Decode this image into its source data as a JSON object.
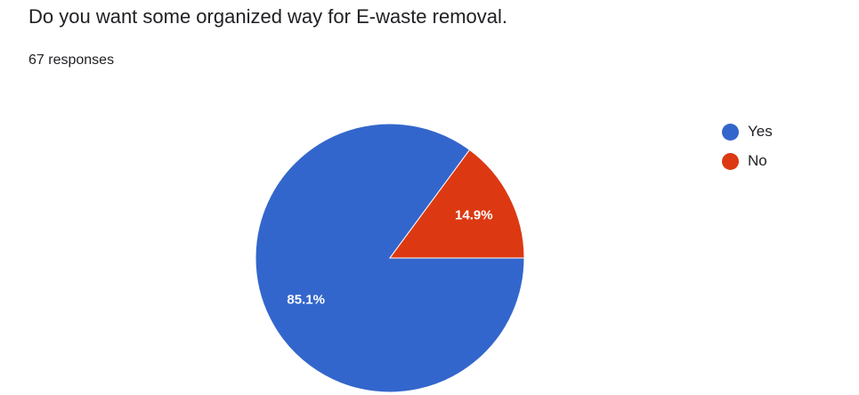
{
  "question": {
    "title": "Do you want some organized way for E-waste removal.",
    "responses": "67 responses"
  },
  "chart_data": {
    "type": "pie",
    "categories": [
      "Yes",
      "No"
    ],
    "values": [
      85.1,
      14.9
    ],
    "value_labels": [
      "85.1%",
      "14.9%"
    ],
    "colors": [
      "#3366cc",
      "#dc3912"
    ],
    "legend": "right",
    "start": "3 o'clock, counter-clockwise for No, clockwise for Yes"
  }
}
